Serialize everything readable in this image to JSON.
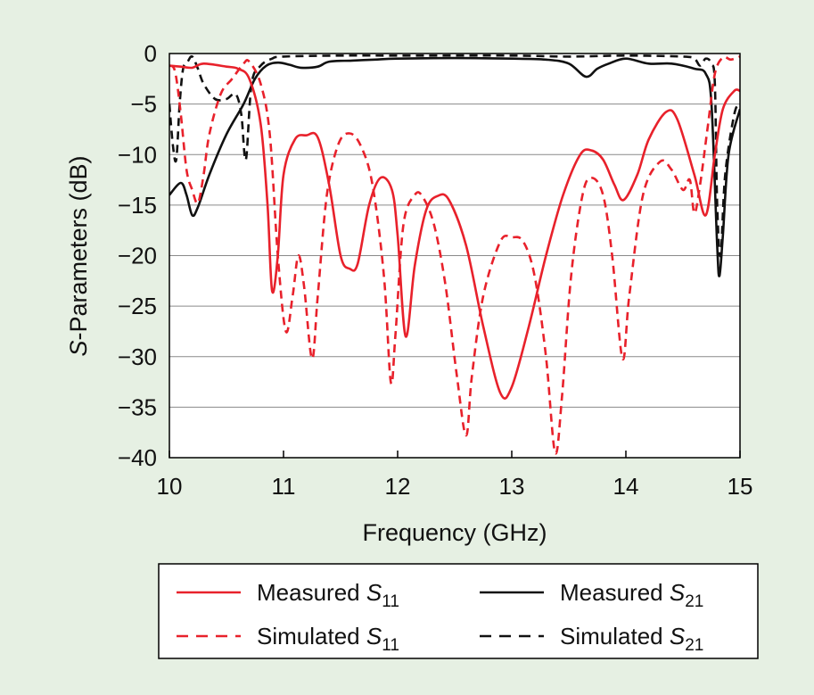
{
  "chart_data": {
    "type": "line",
    "title": "",
    "xlabel": "Frequency (GHz)",
    "ylabel_italic": "S",
    "ylabel_rest": "-Parameters (dB)",
    "xlim": [
      10,
      15
    ],
    "ylim": [
      -40,
      0
    ],
    "xticks": [
      10,
      11,
      12,
      13,
      14,
      15
    ],
    "yticks": [
      0,
      -5,
      -10,
      -15,
      -20,
      -25,
      -30,
      -35,
      -40
    ],
    "ytick_labels": [
      "0",
      "−5",
      "−10",
      "−15",
      "−20",
      "−25",
      "−30",
      "−35",
      "−40"
    ],
    "grid": true,
    "legend_position": "below",
    "series": [
      {
        "name": "Measured S11",
        "label_text": "Measured ",
        "label_symbol": "S",
        "label_subscript": "11",
        "color": "#e8212b",
        "dash": "solid",
        "points": [
          [
            10.0,
            -1.2
          ],
          [
            10.1,
            -1.3
          ],
          [
            10.2,
            -1.4
          ],
          [
            10.3,
            -1.0
          ],
          [
            10.5,
            -1.3
          ],
          [
            10.6,
            -1.5
          ],
          [
            10.7,
            -2.5
          ],
          [
            10.8,
            -7
          ],
          [
            10.86,
            -15
          ],
          [
            10.9,
            -23.5
          ],
          [
            10.95,
            -20
          ],
          [
            11.0,
            -12
          ],
          [
            11.1,
            -8.5
          ],
          [
            11.2,
            -8.1
          ],
          [
            11.3,
            -8.3
          ],
          [
            11.4,
            -13
          ],
          [
            11.5,
            -20
          ],
          [
            11.58,
            -21.3
          ],
          [
            11.65,
            -20.8
          ],
          [
            11.75,
            -15
          ],
          [
            11.85,
            -12.3
          ],
          [
            11.95,
            -13.5
          ],
          [
            12.0,
            -18
          ],
          [
            12.07,
            -28
          ],
          [
            12.15,
            -21
          ],
          [
            12.25,
            -15.5
          ],
          [
            12.35,
            -14.1
          ],
          [
            12.45,
            -14.5
          ],
          [
            12.6,
            -19
          ],
          [
            12.75,
            -27
          ],
          [
            12.9,
            -33.6
          ],
          [
            13.0,
            -33
          ],
          [
            13.15,
            -27
          ],
          [
            13.3,
            -20
          ],
          [
            13.45,
            -14
          ],
          [
            13.6,
            -10
          ],
          [
            13.7,
            -9.6
          ],
          [
            13.8,
            -10.5
          ],
          [
            13.9,
            -13
          ],
          [
            13.98,
            -14.5
          ],
          [
            14.1,
            -12
          ],
          [
            14.2,
            -8.5
          ],
          [
            14.35,
            -5.8
          ],
          [
            14.45,
            -6.5
          ],
          [
            14.6,
            -12
          ],
          [
            14.7,
            -16
          ],
          [
            14.78,
            -10
          ],
          [
            14.85,
            -5.5
          ],
          [
            14.95,
            -3.7
          ],
          [
            15.0,
            -3.7
          ]
        ]
      },
      {
        "name": "Measured S21",
        "label_text": "Measured ",
        "label_symbol": "S",
        "label_subscript": "21",
        "color": "#111111",
        "dash": "solid",
        "points": [
          [
            10.0,
            -14
          ],
          [
            10.1,
            -12.8
          ],
          [
            10.15,
            -14
          ],
          [
            10.2,
            -16
          ],
          [
            10.25,
            -15.2
          ],
          [
            10.35,
            -12
          ],
          [
            10.5,
            -8
          ],
          [
            10.65,
            -5
          ],
          [
            10.75,
            -2.5
          ],
          [
            10.85,
            -1.2
          ],
          [
            10.95,
            -0.9
          ],
          [
            11.05,
            -1.1
          ],
          [
            11.15,
            -1.4
          ],
          [
            11.3,
            -1.3
          ],
          [
            11.4,
            -0.8
          ],
          [
            11.6,
            -0.7
          ],
          [
            11.8,
            -0.6
          ],
          [
            12.0,
            -0.5
          ],
          [
            12.5,
            -0.45
          ],
          [
            13.0,
            -0.5
          ],
          [
            13.3,
            -0.6
          ],
          [
            13.5,
            -1.0
          ],
          [
            13.65,
            -2.3
          ],
          [
            13.75,
            -1.5
          ],
          [
            13.85,
            -1.0
          ],
          [
            14.0,
            -0.5
          ],
          [
            14.2,
            -1.0
          ],
          [
            14.4,
            -1.0
          ],
          [
            14.6,
            -1.5
          ],
          [
            14.7,
            -2
          ],
          [
            14.75,
            -5
          ],
          [
            14.8,
            -19
          ],
          [
            14.82,
            -22
          ],
          [
            14.85,
            -18
          ],
          [
            14.9,
            -10
          ],
          [
            15.0,
            -5.5
          ]
        ]
      },
      {
        "name": "Simulated S11",
        "label_text": "Simulated ",
        "label_symbol": "S",
        "label_subscript": "11",
        "color": "#e8212b",
        "dash": "dashed",
        "points": [
          [
            10.0,
            -1.2
          ],
          [
            10.05,
            -1.8
          ],
          [
            10.1,
            -6
          ],
          [
            10.15,
            -11.5
          ],
          [
            10.2,
            -13.5
          ],
          [
            10.25,
            -14.8
          ],
          [
            10.3,
            -12
          ],
          [
            10.35,
            -8
          ],
          [
            10.45,
            -4
          ],
          [
            10.55,
            -2.5
          ],
          [
            10.65,
            -1.0
          ],
          [
            10.7,
            -0.8
          ],
          [
            10.8,
            -3
          ],
          [
            10.88,
            -8
          ],
          [
            10.95,
            -20
          ],
          [
            11.02,
            -27.5
          ],
          [
            11.08,
            -24
          ],
          [
            11.13,
            -20
          ],
          [
            11.18,
            -23
          ],
          [
            11.25,
            -30.2
          ],
          [
            11.3,
            -24
          ],
          [
            11.38,
            -14
          ],
          [
            11.48,
            -9
          ],
          [
            11.58,
            -7.9
          ],
          [
            11.68,
            -9.2
          ],
          [
            11.78,
            -13
          ],
          [
            11.88,
            -22
          ],
          [
            11.94,
            -32.5
          ],
          [
            11.98,
            -28
          ],
          [
            12.05,
            -17
          ],
          [
            12.15,
            -14
          ],
          [
            12.22,
            -14.2
          ],
          [
            12.32,
            -17
          ],
          [
            12.42,
            -23
          ],
          [
            12.52,
            -32
          ],
          [
            12.6,
            -37.8
          ],
          [
            12.65,
            -32
          ],
          [
            12.75,
            -24
          ],
          [
            12.9,
            -18.6
          ],
          [
            13.0,
            -18.2
          ],
          [
            13.1,
            -18.6
          ],
          [
            13.2,
            -22
          ],
          [
            13.3,
            -30
          ],
          [
            13.38,
            -39.5
          ],
          [
            13.44,
            -34
          ],
          [
            13.52,
            -22
          ],
          [
            13.62,
            -14
          ],
          [
            13.7,
            -12.3
          ],
          [
            13.8,
            -14
          ],
          [
            13.88,
            -20
          ],
          [
            13.97,
            -30.2
          ],
          [
            14.03,
            -24
          ],
          [
            14.15,
            -14
          ],
          [
            14.3,
            -10.7
          ],
          [
            14.4,
            -11.5
          ],
          [
            14.5,
            -13.5
          ],
          [
            14.56,
            -12.5
          ],
          [
            14.6,
            -15.8
          ],
          [
            14.65,
            -13
          ],
          [
            14.72,
            -7
          ],
          [
            14.78,
            -2
          ],
          [
            14.85,
            -0.4
          ],
          [
            14.92,
            -0.6
          ],
          [
            15.0,
            -0.3
          ]
        ]
      },
      {
        "name": "Simulated S21",
        "label_text": "Simulated ",
        "label_symbol": "S",
        "label_subscript": "21",
        "color": "#111111",
        "dash": "dashed",
        "points": [
          [
            10.0,
            -5
          ],
          [
            10.03,
            -9
          ],
          [
            10.06,
            -10.5
          ],
          [
            10.09,
            -5
          ],
          [
            10.12,
            -1.5
          ],
          [
            10.16,
            -0.8
          ],
          [
            10.2,
            -0.3
          ],
          [
            10.25,
            -1.5
          ],
          [
            10.3,
            -3.0
          ],
          [
            10.4,
            -4.5
          ],
          [
            10.5,
            -4.5
          ],
          [
            10.58,
            -4
          ],
          [
            10.63,
            -6
          ],
          [
            10.67,
            -10.5
          ],
          [
            10.72,
            -3
          ],
          [
            10.8,
            -1.2
          ],
          [
            10.9,
            -0.5
          ],
          [
            11.0,
            -0.3
          ],
          [
            11.5,
            -0.2
          ],
          [
            12.0,
            -0.2
          ],
          [
            13.0,
            -0.2
          ],
          [
            13.5,
            -0.3
          ],
          [
            14.0,
            -0.2
          ],
          [
            14.5,
            -0.3
          ],
          [
            14.6,
            -0.5
          ],
          [
            14.65,
            -1.2
          ],
          [
            14.7,
            -0.5
          ],
          [
            14.75,
            -1.0
          ],
          [
            14.78,
            -3
          ],
          [
            14.8,
            -15
          ],
          [
            14.83,
            -20
          ],
          [
            14.87,
            -12
          ],
          [
            14.95,
            -6
          ],
          [
            15.0,
            -5
          ]
        ]
      }
    ]
  }
}
